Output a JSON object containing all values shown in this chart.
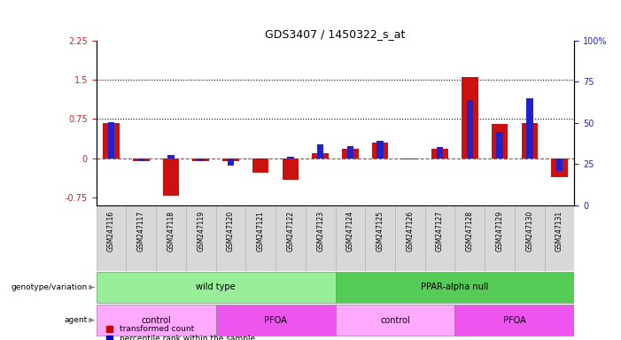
{
  "title": "GDS3407 / 1450322_s_at",
  "samples": [
    "GSM247116",
    "GSM247117",
    "GSM247118",
    "GSM247119",
    "GSM247120",
    "GSM247121",
    "GSM247122",
    "GSM247123",
    "GSM247124",
    "GSM247125",
    "GSM247126",
    "GSM247127",
    "GSM247128",
    "GSM247129",
    "GSM247130",
    "GSM247131"
  ],
  "red_values": [
    0.68,
    -0.05,
    -0.72,
    -0.05,
    -0.05,
    -0.28,
    -0.42,
    0.1,
    0.18,
    0.3,
    -0.02,
    0.18,
    1.56,
    0.65,
    0.68,
    -0.37
  ],
  "blue_values_pct": [
    48,
    23,
    27,
    23,
    20,
    24,
    26,
    34,
    33,
    36,
    25,
    32,
    62,
    42,
    63,
    17
  ],
  "ylim_left": [
    -0.9,
    2.25
  ],
  "ylim_right": [
    0,
    100
  ],
  "yticks_left": [
    -0.75,
    0,
    0.75,
    1.5,
    2.25
  ],
  "yticks_right": [
    0,
    25,
    50,
    75,
    100
  ],
  "hlines": [
    0.75,
    1.5
  ],
  "genotype_groups": [
    {
      "label": "wild type",
      "start": 0,
      "end": 8,
      "color": "#99EE99"
    },
    {
      "label": "PPAR-alpha null",
      "start": 8,
      "end": 16,
      "color": "#55CC55"
    }
  ],
  "agent_groups": [
    {
      "label": "control",
      "start": 0,
      "end": 4,
      "color": "#FFAAFF"
    },
    {
      "label": "PFOA",
      "start": 4,
      "end": 8,
      "color": "#EE55EE"
    },
    {
      "label": "control",
      "start": 8,
      "end": 12,
      "color": "#FFAAFF"
    },
    {
      "label": "PFOA",
      "start": 12,
      "end": 16,
      "color": "#EE55EE"
    }
  ],
  "legend_labels": [
    "transformed count",
    "percentile rank within the sample"
  ],
  "legend_colors": [
    "#CC0000",
    "#0000CC"
  ],
  "red_color": "#CC1111",
  "blue_color": "#2222CC",
  "zero_line_color": "#CC3333",
  "bg_color": "#FFFFFF",
  "xtick_bg": "#D8D8D8"
}
